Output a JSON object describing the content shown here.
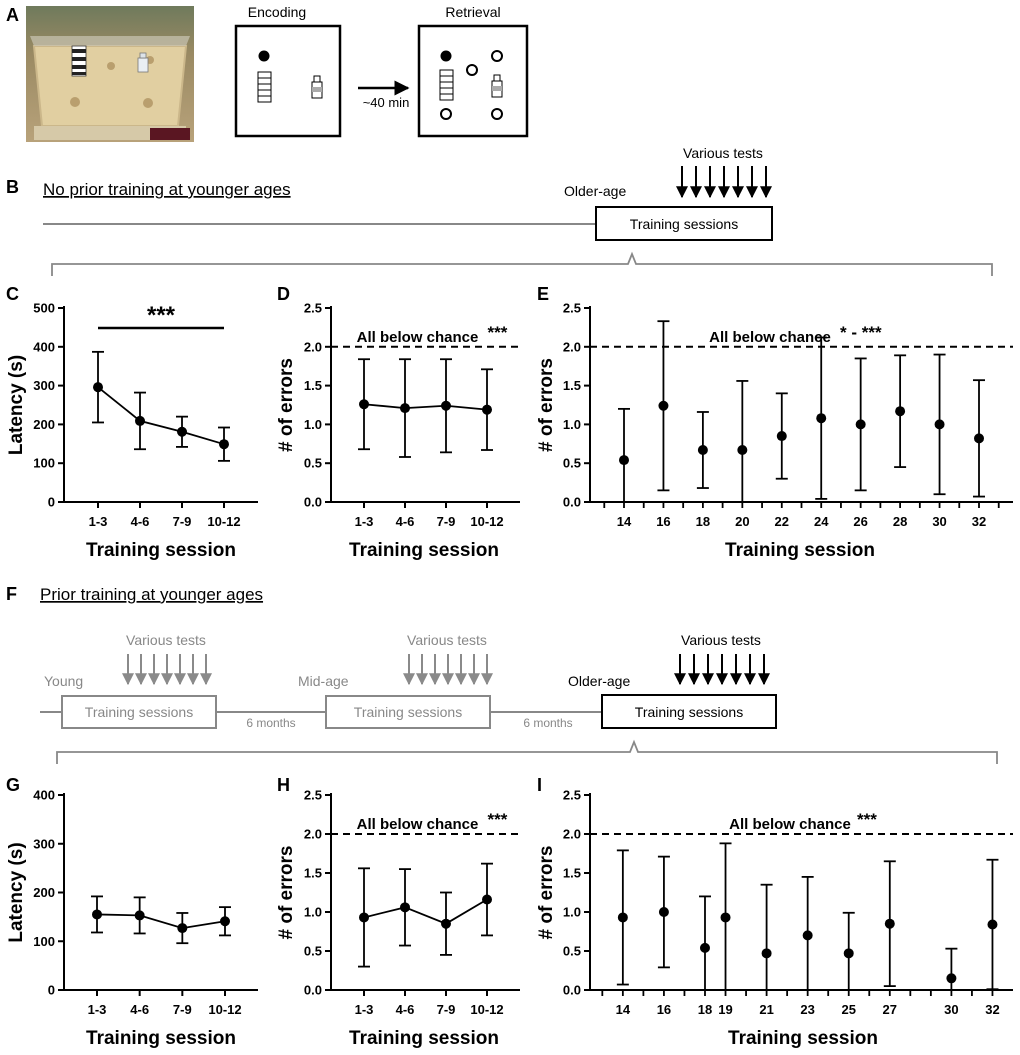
{
  "panels": {
    "a": "A",
    "b": "B",
    "c": "C",
    "d": "D",
    "e": "E",
    "f": "F",
    "g": "G",
    "h": "H",
    "i": "I"
  },
  "schematic": {
    "encoding_label": "Encoding",
    "retrieval_label": "Retrieval",
    "delay_label": "~40 min"
  },
  "timeline_b": {
    "title": "No prior training at younger ages",
    "age_label": "Older-age",
    "tests_label": "Various tests",
    "box_label": "Training sessions"
  },
  "timeline_f": {
    "title": "Prior training at younger ages",
    "young_label": "Young",
    "mid_label": "Mid-age",
    "older_label": "Older-age",
    "tests_label_1": "Various tests",
    "tests_label_2": "Various tests",
    "tests_label_3": "Various tests",
    "box_label_1": "Training sessions",
    "box_label_2": "Training sessions",
    "box_label_3": "Training sessions",
    "gap_label_1": "6 months",
    "gap_label_2": "6 months"
  },
  "chart_data": [
    {
      "id": "C",
      "type": "line",
      "categories": [
        "1-3",
        "4-6",
        "7-9",
        "10-12"
      ],
      "values": [
        296,
        209,
        181,
        149
      ],
      "error": [
        91,
        73,
        39,
        43
      ],
      "xlabel": "Training session",
      "ylabel": "Latency (s)",
      "ylim": [
        0,
        500
      ],
      "yticks": [
        0,
        100,
        200,
        300,
        400,
        500
      ],
      "sig_bar": {
        "from": "1-3",
        "to": "10-12",
        "label": "***"
      }
    },
    {
      "id": "D",
      "type": "line",
      "categories": [
        "1-3",
        "4-6",
        "7-9",
        "10-12"
      ],
      "values": [
        1.26,
        1.21,
        1.24,
        1.19
      ],
      "error": [
        0.58,
        0.63,
        0.6,
        0.52
      ],
      "xlabel": "Training session",
      "ylabel": "# of errors",
      "ylim": [
        0,
        2.5
      ],
      "yticks": [
        "0.0",
        "0.5",
        "1.0",
        "1.5",
        "2.0",
        "2.5"
      ],
      "chance_line": 2.0,
      "annotation": "All below chance",
      "annotation_stars": "***"
    },
    {
      "id": "E",
      "type": "scatter",
      "categories": [
        "14",
        "16",
        "18",
        "20",
        "22",
        "24",
        "26",
        "28",
        "30",
        "32"
      ],
      "values": [
        0.54,
        1.24,
        0.67,
        0.67,
        0.85,
        1.08,
        1.0,
        1.17,
        1.0,
        0.82
      ],
      "error": [
        0.66,
        1.09,
        0.49,
        0.89,
        0.55,
        1.04,
        0.85,
        0.72,
        0.9,
        0.75
      ],
      "xlabel": "Training session",
      "ylabel": "# of errors",
      "ylim": [
        0,
        2.5
      ],
      "yticks": [
        "0.0",
        "0.5",
        "1.0",
        "1.5",
        "2.0",
        "2.5"
      ],
      "chance_line": 2.0,
      "annotation": "All below chance",
      "annotation_stars": "* - ***"
    },
    {
      "id": "G",
      "type": "line",
      "categories": [
        "1-3",
        "4-6",
        "7-9",
        "10-12"
      ],
      "values": [
        155,
        153,
        127,
        141
      ],
      "error": [
        37,
        37,
        31,
        29
      ],
      "xlabel": "Training session",
      "ylabel": "Latency (s)",
      "ylim": [
        0,
        400
      ],
      "yticks": [
        0,
        100,
        200,
        300,
        400
      ]
    },
    {
      "id": "H",
      "type": "line",
      "categories": [
        "1-3",
        "4-6",
        "7-9",
        "10-12"
      ],
      "values": [
        0.93,
        1.06,
        0.85,
        1.16
      ],
      "error": [
        0.63,
        0.49,
        0.4,
        0.46
      ],
      "xlabel": "Training session",
      "ylabel": "# of errors",
      "ylim": [
        0,
        2.5
      ],
      "yticks": [
        "0.0",
        "0.5",
        "1.0",
        "1.5",
        "2.0",
        "2.5"
      ],
      "chance_line": 2.0,
      "annotation": "All below chance",
      "annotation_stars": "***"
    },
    {
      "id": "I",
      "type": "scatter",
      "categories": [
        "14",
        "16",
        "18",
        "19",
        "21",
        "23",
        "25",
        "27",
        "30",
        "32"
      ],
      "x": [
        14,
        16,
        18,
        19,
        21,
        23,
        25,
        27,
        30,
        32
      ],
      "values": [
        0.93,
        1.0,
        0.54,
        0.93,
        0.47,
        0.7,
        0.47,
        0.85,
        0.15,
        0.84
      ],
      "error": [
        0.86,
        0.71,
        0.66,
        0.95,
        0.88,
        0.75,
        0.52,
        0.8,
        0.38,
        0.83
      ],
      "xlabel": "Training session",
      "ylabel": "# of errors",
      "ylim": [
        0,
        2.5
      ],
      "yticks": [
        "0.0",
        "0.5",
        "1.0",
        "1.5",
        "2.0",
        "2.5"
      ],
      "chance_line": 2.0,
      "annotation": "All below chance",
      "annotation_stars": "***"
    }
  ]
}
